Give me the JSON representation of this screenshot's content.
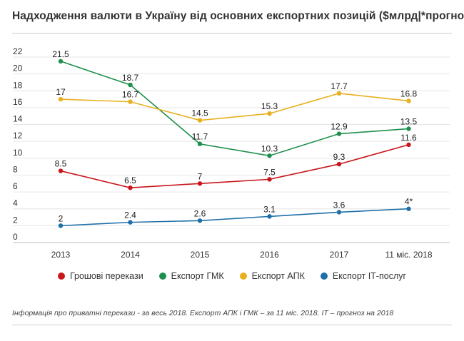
{
  "title": "Надходження валюти в Україну від основних експортних позицій ($млрд|*прогноз)",
  "note": "Інформація про приватні перекази - за весь 2018. Експорт АПК і ГМК – за 11 міс. 2018. IT – прогноз на 2018",
  "chart_data": {
    "type": "line",
    "title": "Надходження валюти в Україну від основних експортних позицій ($млрд|*прогноз)",
    "categories": [
      "2013",
      "2014",
      "2015",
      "2016",
      "2017",
      "11 міс. 2018"
    ],
    "ylim": [
      0,
      22
    ],
    "yticks": [
      0,
      2,
      4,
      6,
      8,
      10,
      12,
      14,
      16,
      18,
      20,
      22
    ],
    "grid": "horizontal",
    "legend_position": "bottom",
    "series": [
      {
        "name": "Грошові перекази",
        "color": "#c8161d",
        "values": [
          8.5,
          6.5,
          7,
          7.5,
          9.3,
          11.6
        ],
        "labels": [
          "8.5",
          "6.5",
          "7",
          "7.5",
          "9.3",
          "11.6"
        ]
      },
      {
        "name": "Експорт ГМК",
        "color": "#1e8f4e",
        "values": [
          21.5,
          18.7,
          11.7,
          10.3,
          12.9,
          13.5
        ],
        "labels": [
          "21.5",
          "18.7",
          "11.7",
          "10.3",
          "12.9",
          "13.5"
        ]
      },
      {
        "name": "Експорт АПК",
        "color": "#e8b01e",
        "values": [
          17,
          16.7,
          14.5,
          15.3,
          17.7,
          16.8
        ],
        "labels": [
          "17",
          "16.7",
          "14.5",
          "15.3",
          "17.7",
          "16.8"
        ]
      },
      {
        "name": "Експорт ІТ-послуг",
        "color": "#1f6fa8",
        "values": [
          2,
          2.4,
          2.6,
          3.1,
          3.6,
          4
        ],
        "labels": [
          "2",
          "2.4",
          "2.6",
          "3.1",
          "3.6",
          "4*"
        ]
      }
    ]
  }
}
